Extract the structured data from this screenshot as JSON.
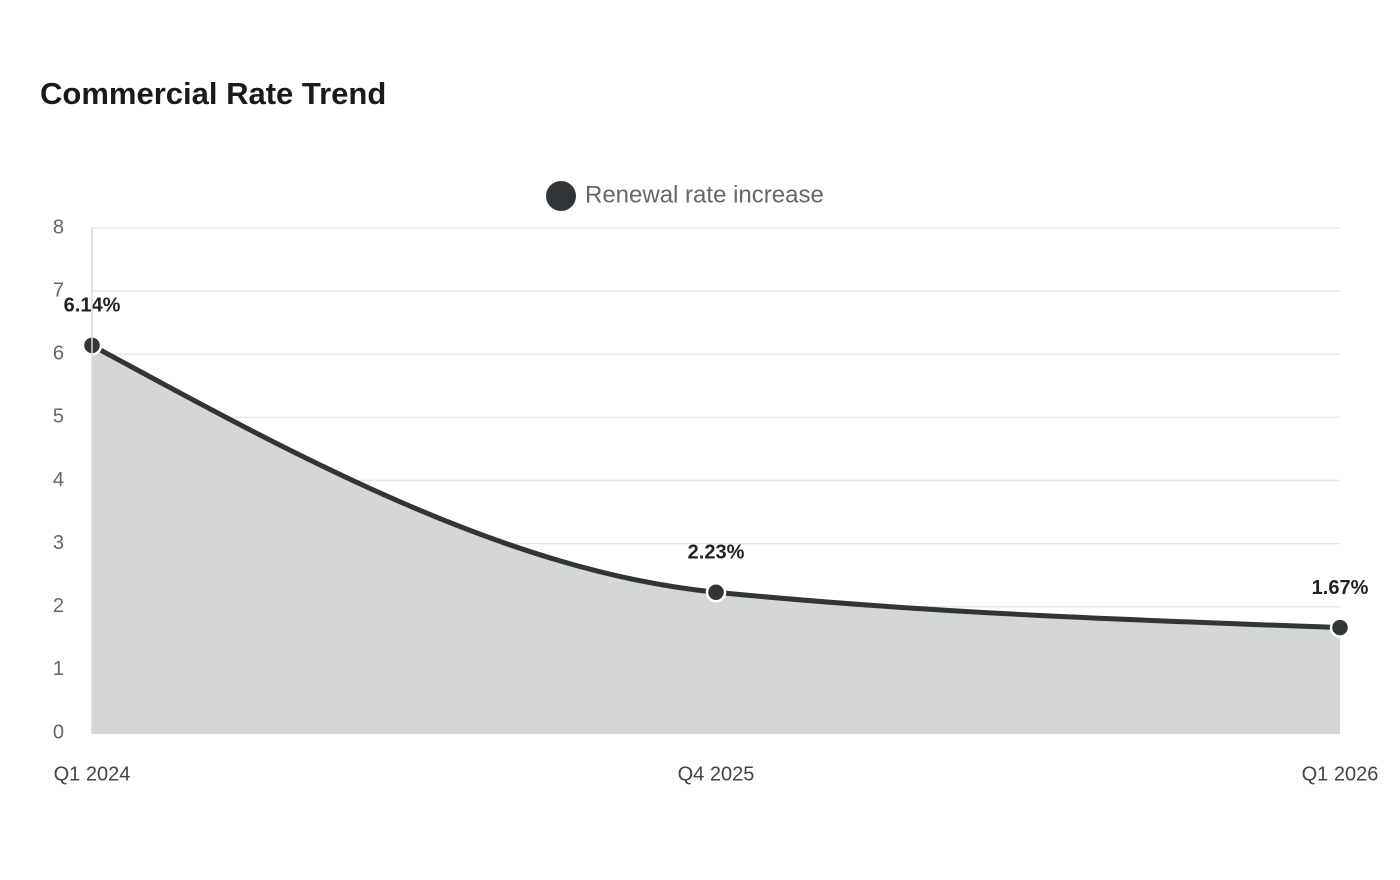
{
  "chart_data": {
    "type": "area",
    "title": "Commercial Rate Trend",
    "categories": [
      "Q1 2024",
      "Q4 2025",
      "Q1 2026"
    ],
    "series": [
      {
        "name": "Renewal rate increase",
        "color": "#323538",
        "fill": "#d5d6d6",
        "values": [
          6.14,
          2.23,
          1.67
        ],
        "value_labels": [
          "6.14%",
          "2.23%",
          "1.67%"
        ]
      }
    ],
    "ylim": [
      0,
      8
    ],
    "yticks": [
      0,
      1,
      2,
      3,
      4,
      5,
      6,
      7,
      8
    ],
    "grid": true,
    "legend": "top"
  }
}
